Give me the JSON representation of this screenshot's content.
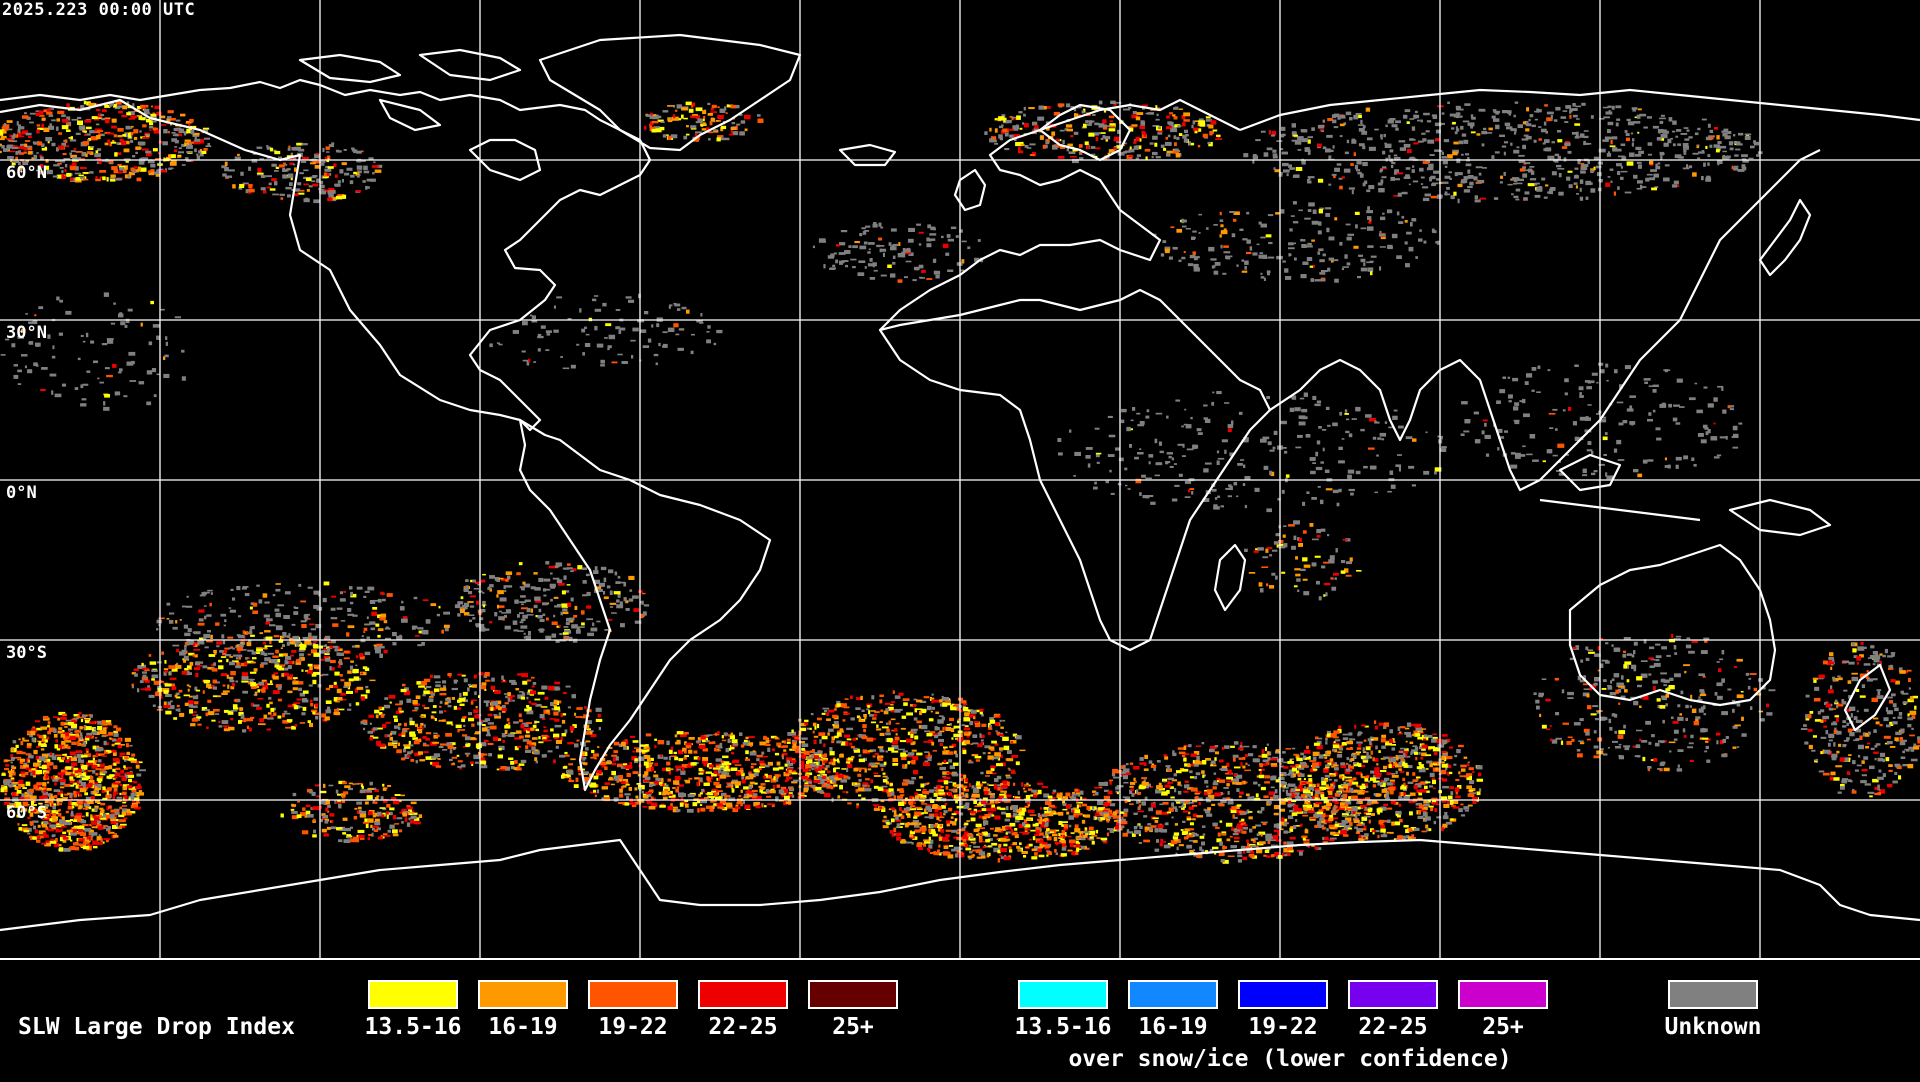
{
  "header": {
    "timestamp": "2025.223 00:00 UTC"
  },
  "map": {
    "lat_labels": [
      "60°N",
      "30°N",
      "0°N",
      "30°S",
      "60°S"
    ],
    "colors": {
      "background": "#000000",
      "grid": "#ffffff",
      "coast": "#ffffff"
    }
  },
  "legend": {
    "title": "SLW Large Drop Index",
    "note": "over snow/ice (lower confidence)",
    "normal": [
      {
        "label": "13.5-16",
        "color": "#ffff00"
      },
      {
        "label": "16-19",
        "color": "#ff9900"
      },
      {
        "label": "19-22",
        "color": "#ff5500"
      },
      {
        "label": "22-25",
        "color": "#ee0000"
      },
      {
        "label": "25+",
        "color": "#660000"
      }
    ],
    "snow_ice": [
      {
        "label": "13.5-16",
        "color": "#00ffff"
      },
      {
        "label": "16-19",
        "color": "#1188ff"
      },
      {
        "label": "19-22",
        "color": "#0000ff"
      },
      {
        "label": "22-25",
        "color": "#7700ee"
      },
      {
        "label": "25+",
        "color": "#cc00cc"
      }
    ],
    "unknown": {
      "label": "Unknown",
      "color": "#808080"
    }
  }
}
